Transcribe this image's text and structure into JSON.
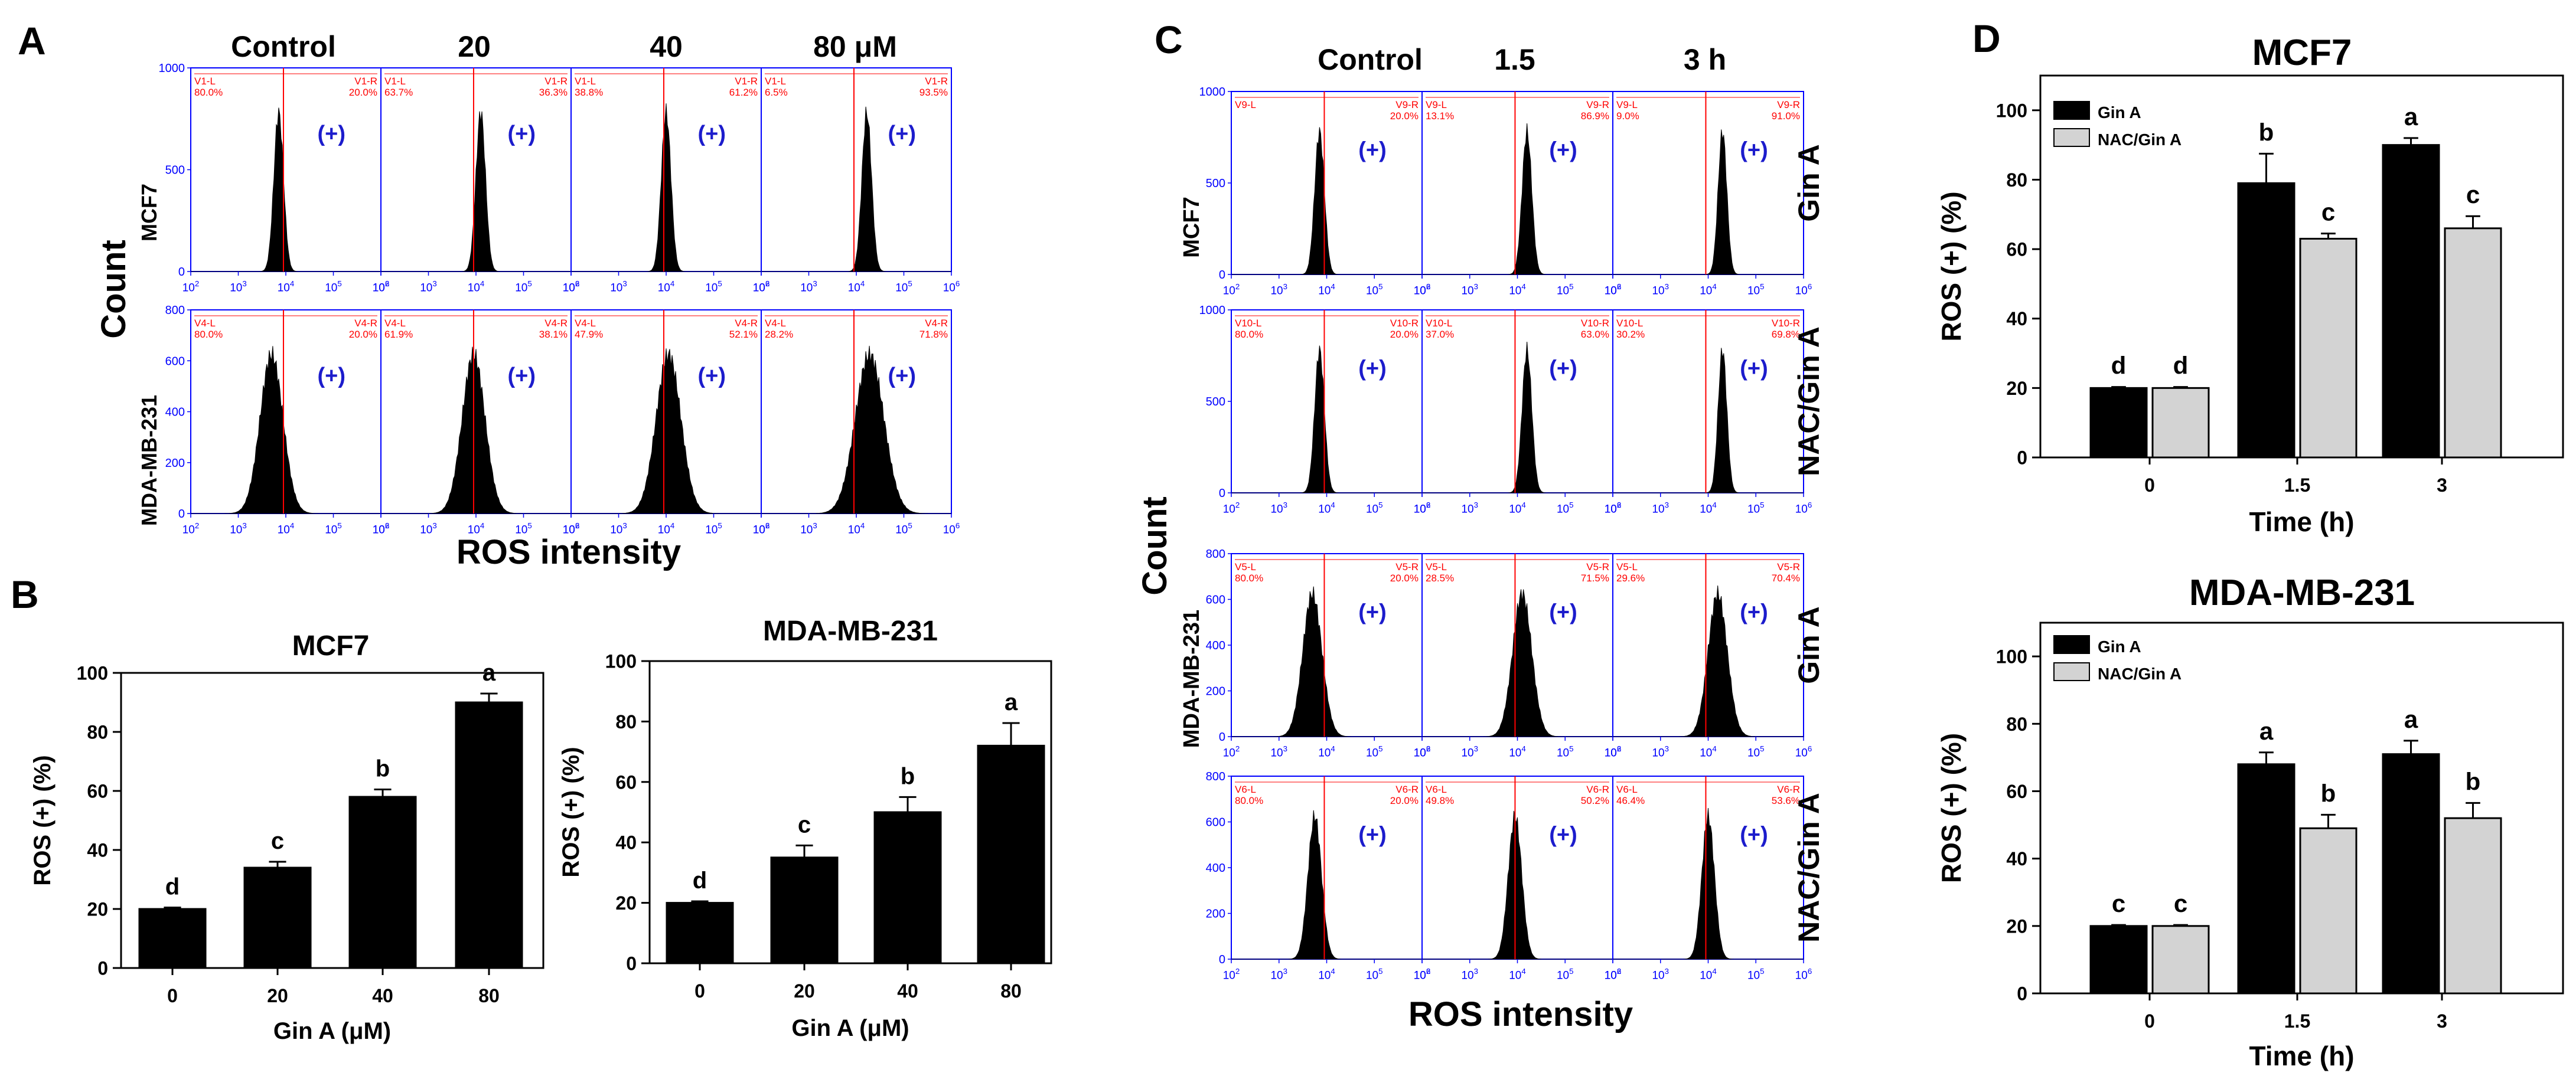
{
  "colors": {
    "gin_bar": "#000000",
    "nac_bar": "#d3d3d3",
    "gate_line": "#ff0000",
    "gate_text": "#ff0000",
    "plus_text": "#1c1ccc",
    "frame": "#0000ff",
    "hist": "#000000"
  },
  "panels": {
    "A": {
      "label": "A",
      "column_headers": [
        "Control",
        "20",
        "40",
        "80 μM"
      ],
      "row_labels": [
        "MCF7",
        "MDA-MB-231"
      ],
      "x_axis_label": "ROS intensity",
      "y_axis_label": "Count",
      "x_ticks": [
        {
          "base": "10",
          "exp": "2"
        },
        {
          "base": "10",
          "exp": "3"
        },
        {
          "base": "10",
          "exp": "4"
        },
        {
          "base": "10",
          "exp": "5"
        },
        {
          "base": "10",
          "exp": "6"
        }
      ],
      "y_ticks": [
        [
          "1000",
          "500",
          "0"
        ],
        [
          "800",
          "600",
          "400",
          "200",
          "0"
        ]
      ],
      "plus_label": "(+)",
      "gates": [
        [
          {
            "left_name": "V1-L",
            "left_pct": "80.0%",
            "right_name": "V1-R",
            "right_pct": "20.0%"
          },
          {
            "left_name": "V1-L",
            "left_pct": "63.7%",
            "right_name": "V1-R",
            "right_pct": "36.3%"
          },
          {
            "left_name": "V1-L",
            "left_pct": "38.8%",
            "right_name": "V1-R",
            "right_pct": "61.2%"
          },
          {
            "left_name": "V1-L",
            "left_pct": "6.5%",
            "right_name": "V1-R",
            "right_pct": "93.5%"
          }
        ],
        [
          {
            "left_name": "V4-L",
            "left_pct": "80.0%",
            "right_name": "V4-R",
            "right_pct": "20.0%"
          },
          {
            "left_name": "V4-L",
            "left_pct": "61.9%",
            "right_name": "V4-R",
            "right_pct": "38.1%"
          },
          {
            "left_name": "V4-L",
            "left_pct": "47.9%",
            "right_name": "V4-R",
            "right_pct": "52.1%"
          },
          {
            "left_name": "V4-L",
            "left_pct": "28.2%",
            "right_name": "V4-R",
            "right_pct": "71.8%"
          }
        ]
      ]
    },
    "B": {
      "label": "B"
    },
    "C": {
      "label": "C",
      "column_headers": [
        "Control",
        "1.5",
        "3 h"
      ],
      "treatment_labels": [
        "Gin A",
        "NAC/Gin A",
        "Gin A",
        "NAC/Gin A"
      ],
      "cell_labels": [
        "MCF7",
        "MDA-MB-231"
      ],
      "x_axis_label": "ROS intensity",
      "y_axis_label": "Count",
      "x_ticks": [
        {
          "base": "10",
          "exp": "2"
        },
        {
          "base": "10",
          "exp": "3"
        },
        {
          "base": "10",
          "exp": "4"
        },
        {
          "base": "10",
          "exp": "5"
        },
        {
          "base": "10",
          "exp": "6"
        }
      ],
      "y_ticks": [
        [
          "1000",
          "500",
          "0"
        ],
        [
          "1000",
          "500",
          "0"
        ],
        [
          "800",
          "600",
          "400",
          "200",
          "0"
        ],
        [
          "800",
          "600",
          "400",
          "200",
          "0"
        ]
      ],
      "plus_label": "(+)",
      "gates": [
        [
          {
            "left_name": "V9-L",
            "left_pct": "",
            "right_name": "V9-R",
            "right_pct": "20.0%"
          },
          {
            "left_name": "V9-L",
            "left_pct": "13.1%",
            "right_name": "V9-R",
            "right_pct": "86.9%"
          },
          {
            "left_name": "V9-L",
            "left_pct": "9.0%",
            "right_name": "V9-R",
            "right_pct": "91.0%"
          }
        ],
        [
          {
            "left_name": "V10-L",
            "left_pct": "80.0%",
            "right_name": "V10-R",
            "right_pct": "20.0%"
          },
          {
            "left_name": "V10-L",
            "left_pct": "37.0%",
            "right_name": "V10-R",
            "right_pct": "63.0%"
          },
          {
            "left_name": "V10-L",
            "left_pct": "30.2%",
            "right_name": "V10-R",
            "right_pct": "69.8%"
          }
        ],
        [
          {
            "left_name": "V5-L",
            "left_pct": "80.0%",
            "right_name": "V5-R",
            "right_pct": "20.0%"
          },
          {
            "left_name": "V5-L",
            "left_pct": "28.5%",
            "right_name": "V5-R",
            "right_pct": "71.5%"
          },
          {
            "left_name": "V5-L",
            "left_pct": "29.6%",
            "right_name": "V5-R",
            "right_pct": "70.4%"
          }
        ],
        [
          {
            "left_name": "V6-L",
            "left_pct": "80.0%",
            "right_name": "V6-R",
            "right_pct": "20.0%"
          },
          {
            "left_name": "V6-L",
            "left_pct": "49.8%",
            "right_name": "V6-R",
            "right_pct": "50.2%"
          },
          {
            "left_name": "V6-L",
            "left_pct": "46.4%",
            "right_name": "V6-R",
            "right_pct": "53.6%"
          }
        ]
      ]
    },
    "D": {
      "label": "D"
    }
  },
  "chart_data": [
    {
      "id": "B-MCF7",
      "type": "bar",
      "title": "MCF7",
      "xlabel": "Gin A (μM)",
      "ylabel": "ROS (+) (%)",
      "categories": [
        "0",
        "20",
        "40",
        "80"
      ],
      "series": [
        {
          "name": "Gin A",
          "values": [
            20,
            34,
            58,
            90
          ],
          "errors": [
            0.5,
            2,
            2.5,
            3
          ],
          "letters": [
            "d",
            "c",
            "b",
            "a"
          ]
        }
      ],
      "ylim": [
        0,
        100
      ],
      "yticks": [
        "0",
        "20",
        "40",
        "60",
        "80",
        "100"
      ],
      "legend": []
    },
    {
      "id": "B-MDA",
      "type": "bar",
      "title": "MDA-MB-231",
      "xlabel": "Gin A (μM)",
      "ylabel": "ROS (+) (%)",
      "categories": [
        "0",
        "20",
        "40",
        "80"
      ],
      "series": [
        {
          "name": "Gin A",
          "values": [
            20,
            35,
            50,
            72
          ],
          "errors": [
            0.5,
            4,
            5,
            7.5
          ],
          "letters": [
            "d",
            "c",
            "b",
            "a"
          ]
        }
      ],
      "ylim": [
        0,
        100
      ],
      "yticks": [
        "0",
        "20",
        "40",
        "60",
        "80",
        "100"
      ],
      "legend": []
    },
    {
      "id": "D-MCF7",
      "type": "bar",
      "title": "MCF7",
      "xlabel": "Time (h)",
      "ylabel": "ROS (+) (%)",
      "categories": [
        "0",
        "1.5",
        "3"
      ],
      "series": [
        {
          "name": "Gin A",
          "values": [
            20,
            79,
            90
          ],
          "errors": [
            0.3,
            8.5,
            2
          ],
          "letters": [
            "d",
            "b",
            "a"
          ]
        },
        {
          "name": "NAC/Gin A",
          "values": [
            20,
            63,
            66
          ],
          "errors": [
            0.3,
            1.5,
            3.5
          ],
          "letters": [
            "d",
            "c",
            "c"
          ]
        }
      ],
      "ylim": [
        0,
        110
      ],
      "yticks": [
        "0",
        "20",
        "40",
        "60",
        "80",
        "100"
      ],
      "legend": [
        "Gin A",
        "NAC/Gin A"
      ]
    },
    {
      "id": "D-MDA",
      "type": "bar",
      "title": "MDA-MB-231",
      "xlabel": "Time (h)",
      "ylabel": "ROS (+) (%)",
      "categories": [
        "0",
        "1.5",
        "3"
      ],
      "series": [
        {
          "name": "Gin A",
          "values": [
            20,
            68,
            71
          ],
          "errors": [
            0.3,
            3.5,
            4
          ],
          "letters": [
            "c",
            "a",
            "a"
          ]
        },
        {
          "name": "NAC/Gin A",
          "values": [
            20,
            49,
            52
          ],
          "errors": [
            0.3,
            4,
            4.5
          ],
          "letters": [
            "c",
            "b",
            "b"
          ]
        }
      ],
      "ylim": [
        0,
        110
      ],
      "yticks": [
        "0",
        "20",
        "40",
        "60",
        "80",
        "100"
      ],
      "legend": [
        "Gin A",
        "NAC/Gin A"
      ]
    },
    {
      "id": "A-hist",
      "type": "histogram",
      "description_rows": [
        "MCF7",
        "MDA-MB-231"
      ],
      "peak_log10": [
        [
          3.85,
          4.1,
          4.0,
          4.22
        ],
        [
          3.7,
          3.95,
          4.05,
          4.28
        ]
      ],
      "peak_width": [
        [
          0.1,
          0.1,
          0.1,
          0.1
        ],
        [
          0.24,
          0.24,
          0.26,
          0.3
        ]
      ]
    },
    {
      "id": "C-hist",
      "type": "histogram",
      "description_rows": [
        "MCF7 Gin A",
        "MCF7 NAC/Gin A",
        "MDA-MB-231 Gin A",
        "MDA-MB-231 NAC/Gin A"
      ],
      "peak_log10": [
        [
          3.85,
          4.2,
          4.3
        ],
        [
          3.85,
          4.2,
          4.3
        ],
        [
          3.7,
          4.1,
          4.2
        ],
        [
          3.75,
          3.95,
          4.0
        ]
      ],
      "peak_width": [
        [
          0.1,
          0.1,
          0.09
        ],
        [
          0.1,
          0.1,
          0.09
        ],
        [
          0.2,
          0.2,
          0.2
        ],
        [
          0.14,
          0.14,
          0.13
        ]
      ]
    }
  ]
}
